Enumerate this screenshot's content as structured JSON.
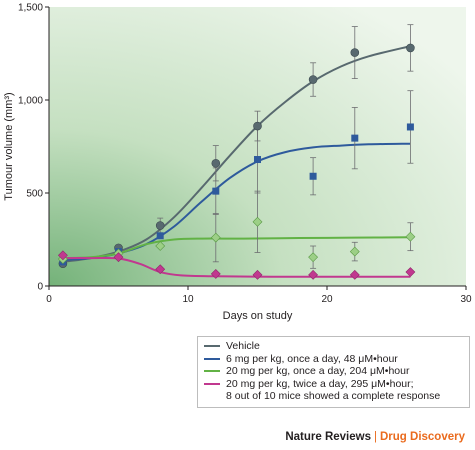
{
  "chart_data": {
    "type": "line",
    "xlabel": "Days on study",
    "ylabel": "Tumour volume (mm³)",
    "xlim": [
      0,
      30
    ],
    "ylim": [
      0,
      1500
    ],
    "x_ticks": [
      0,
      10,
      20,
      30
    ],
    "x_tick_labels": [
      "0",
      "10",
      "20",
      "30"
    ],
    "y_ticks": [
      0,
      500,
      1000,
      1500
    ],
    "y_tick_labels": [
      "0",
      "500",
      "1,000",
      "1,500"
    ],
    "grid": false,
    "legend_position": "bottom-right, outside plot",
    "series": [
      {
        "name": "Vehicle",
        "color": "#58696f",
        "marker": "circle",
        "x": [
          1,
          5,
          8,
          12,
          15,
          19,
          22,
          26
        ],
        "y": [
          120,
          205,
          325,
          660,
          860,
          1110,
          1255,
          1280
        ],
        "error": [
          null,
          null,
          40,
          95,
          80,
          90,
          140,
          125
        ],
        "fit": [
          [
            1,
            130
          ],
          [
            3,
            150
          ],
          [
            5,
            185
          ],
          [
            7,
            250
          ],
          [
            9,
            370
          ],
          [
            11,
            530
          ],
          [
            13,
            700
          ],
          [
            15,
            860
          ],
          [
            17,
            990
          ],
          [
            19,
            1100
          ],
          [
            21,
            1180
          ],
          [
            23,
            1235
          ],
          [
            26,
            1290
          ]
        ]
      },
      {
        "name": "6 mg per kg, once a day, 48 μM•hour",
        "color": "#2e5a9c",
        "marker": "square",
        "x": [
          1,
          5,
          8,
          12,
          15,
          19,
          22,
          26
        ],
        "y": [
          130,
          185,
          270,
          510,
          680,
          590,
          795,
          855
        ],
        "error": [
          null,
          null,
          null,
          125,
          180,
          100,
          165,
          195
        ],
        "fit": [
          [
            1,
            140
          ],
          [
            3,
            150
          ],
          [
            5,
            175
          ],
          [
            7,
            225
          ],
          [
            9,
            320
          ],
          [
            11,
            455
          ],
          [
            13,
            580
          ],
          [
            15,
            670
          ],
          [
            17,
            720
          ],
          [
            19,
            745
          ],
          [
            21,
            755
          ],
          [
            23,
            762
          ],
          [
            26,
            765
          ]
        ]
      },
      {
        "name": "20 mg per kg, once a day, 204 μM•hour",
        "color": "#62b245",
        "marker": "diamond",
        "x": [
          1,
          5,
          8,
          12,
          15,
          19,
          22,
          26
        ],
        "y": [
          145,
          175,
          215,
          260,
          345,
          155,
          185,
          265
        ],
        "error": [
          null,
          null,
          null,
          130,
          165,
          60,
          50,
          75
        ],
        "fit": [
          [
            1,
            150
          ],
          [
            3,
            155
          ],
          [
            5,
            175
          ],
          [
            7,
            225
          ],
          [
            9,
            250
          ],
          [
            11,
            255
          ],
          [
            14,
            255
          ],
          [
            18,
            258
          ],
          [
            22,
            260
          ],
          [
            26,
            262
          ]
        ]
      },
      {
        "name": "20 mg per kg, twice a day, 295 μM•hour;\n8 out of 10 mice showed a complete response",
        "color": "#c1388f",
        "marker": "diamond",
        "x": [
          1,
          5,
          8,
          12,
          15,
          19,
          22,
          26
        ],
        "y": [
          165,
          155,
          90,
          65,
          60,
          60,
          60,
          75
        ],
        "error": [
          null,
          null,
          null,
          null,
          null,
          null,
          null,
          null
        ],
        "fit": [
          [
            1,
            150
          ],
          [
            3,
            150
          ],
          [
            5,
            148
          ],
          [
            6.5,
            120
          ],
          [
            8,
            75
          ],
          [
            9.5,
            57
          ],
          [
            12,
            52
          ],
          [
            16,
            50
          ],
          [
            20,
            50
          ],
          [
            26,
            50
          ]
        ]
      }
    ]
  },
  "footer": {
    "journal": "Nature Reviews",
    "separator": "|",
    "section": "Drug Discovery"
  }
}
